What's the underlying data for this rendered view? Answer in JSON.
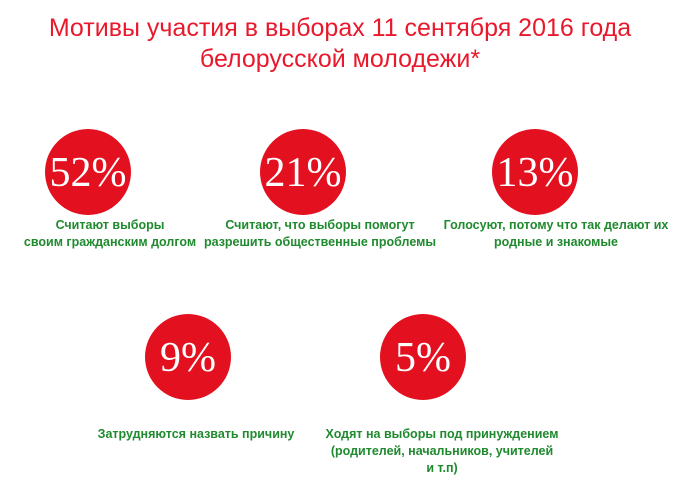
{
  "header": {
    "title": [
      "Мотивы участия в выборах 11 сентября 2016 года",
      "белорусской молодежи*"
    ]
  },
  "items": [
    {
      "label": "52%",
      "caption": [
        "Считают  выборы",
        "своим гражданским долгом"
      ]
    },
    {
      "label": "21%",
      "caption": [
        "Считают, что выборы помогут",
        "разрешить общественные проблемы"
      ]
    },
    {
      "label": "13%",
      "caption": [
        "Голосуют, потому что так делают их",
        "родные и знакомые"
      ]
    },
    {
      "label": "9%",
      "caption": [
        "Затрудняются назвать причину"
      ]
    },
    {
      "label": "5%",
      "caption": [
        "Ходят на выборы под принуждением",
        "(родителей, начальников, учителей",
        "и т.п)"
      ]
    }
  ]
}
